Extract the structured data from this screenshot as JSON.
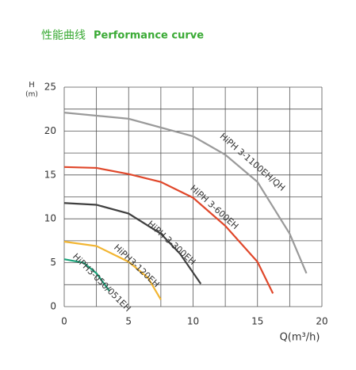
{
  "chart_data": {
    "type": "line",
    "title": "性能曲线",
    "subtitle": "Performance curve",
    "y_label": "H",
    "y_unit": "(m)",
    "x_label": "Q(m³/h)",
    "xlim": [
      0,
      20
    ],
    "xticks": [
      0,
      5,
      10,
      15,
      20
    ],
    "ylim": [
      0,
      25
    ],
    "yticks": [
      0,
      5,
      10,
      15,
      20,
      25
    ],
    "grid": true,
    "series": [
      {
        "name": "HiPH 3-1100EH/QH",
        "color": "#9a9a9a",
        "x": [
          0,
          5,
          10,
          12.5,
          15,
          17.5,
          18.8
        ],
        "values": [
          22.1,
          21.4,
          19.4,
          17.3,
          14.2,
          8.3,
          3.8
        ]
      },
      {
        "name": "HiPH 3-600EH",
        "color": "#e0472a",
        "x": [
          0,
          2.5,
          5,
          7.5,
          10,
          12.5,
          15,
          16.2
        ],
        "values": [
          15.9,
          15.8,
          15.1,
          14.2,
          12.4,
          9.2,
          5.1,
          1.5
        ]
      },
      {
        "name": "HiPH 3-300EH",
        "color": "#404040",
        "x": [
          0,
          2.5,
          5,
          7.5,
          9,
          10.6
        ],
        "values": [
          11.8,
          11.6,
          10.6,
          8.3,
          6.0,
          2.6
        ]
      },
      {
        "name": "HiPH3-120EH",
        "color": "#f2b531",
        "x": [
          0,
          2.5,
          5,
          6.5,
          7.5
        ],
        "values": [
          7.4,
          6.9,
          5.1,
          3.3,
          0.8
        ]
      },
      {
        "name": "HiPH3-050/051EH",
        "color": "#1aa37a",
        "x": [
          0,
          1.5,
          2.5,
          3.5
        ],
        "values": [
          5.4,
          5.0,
          3.8,
          1.8
        ]
      }
    ]
  }
}
